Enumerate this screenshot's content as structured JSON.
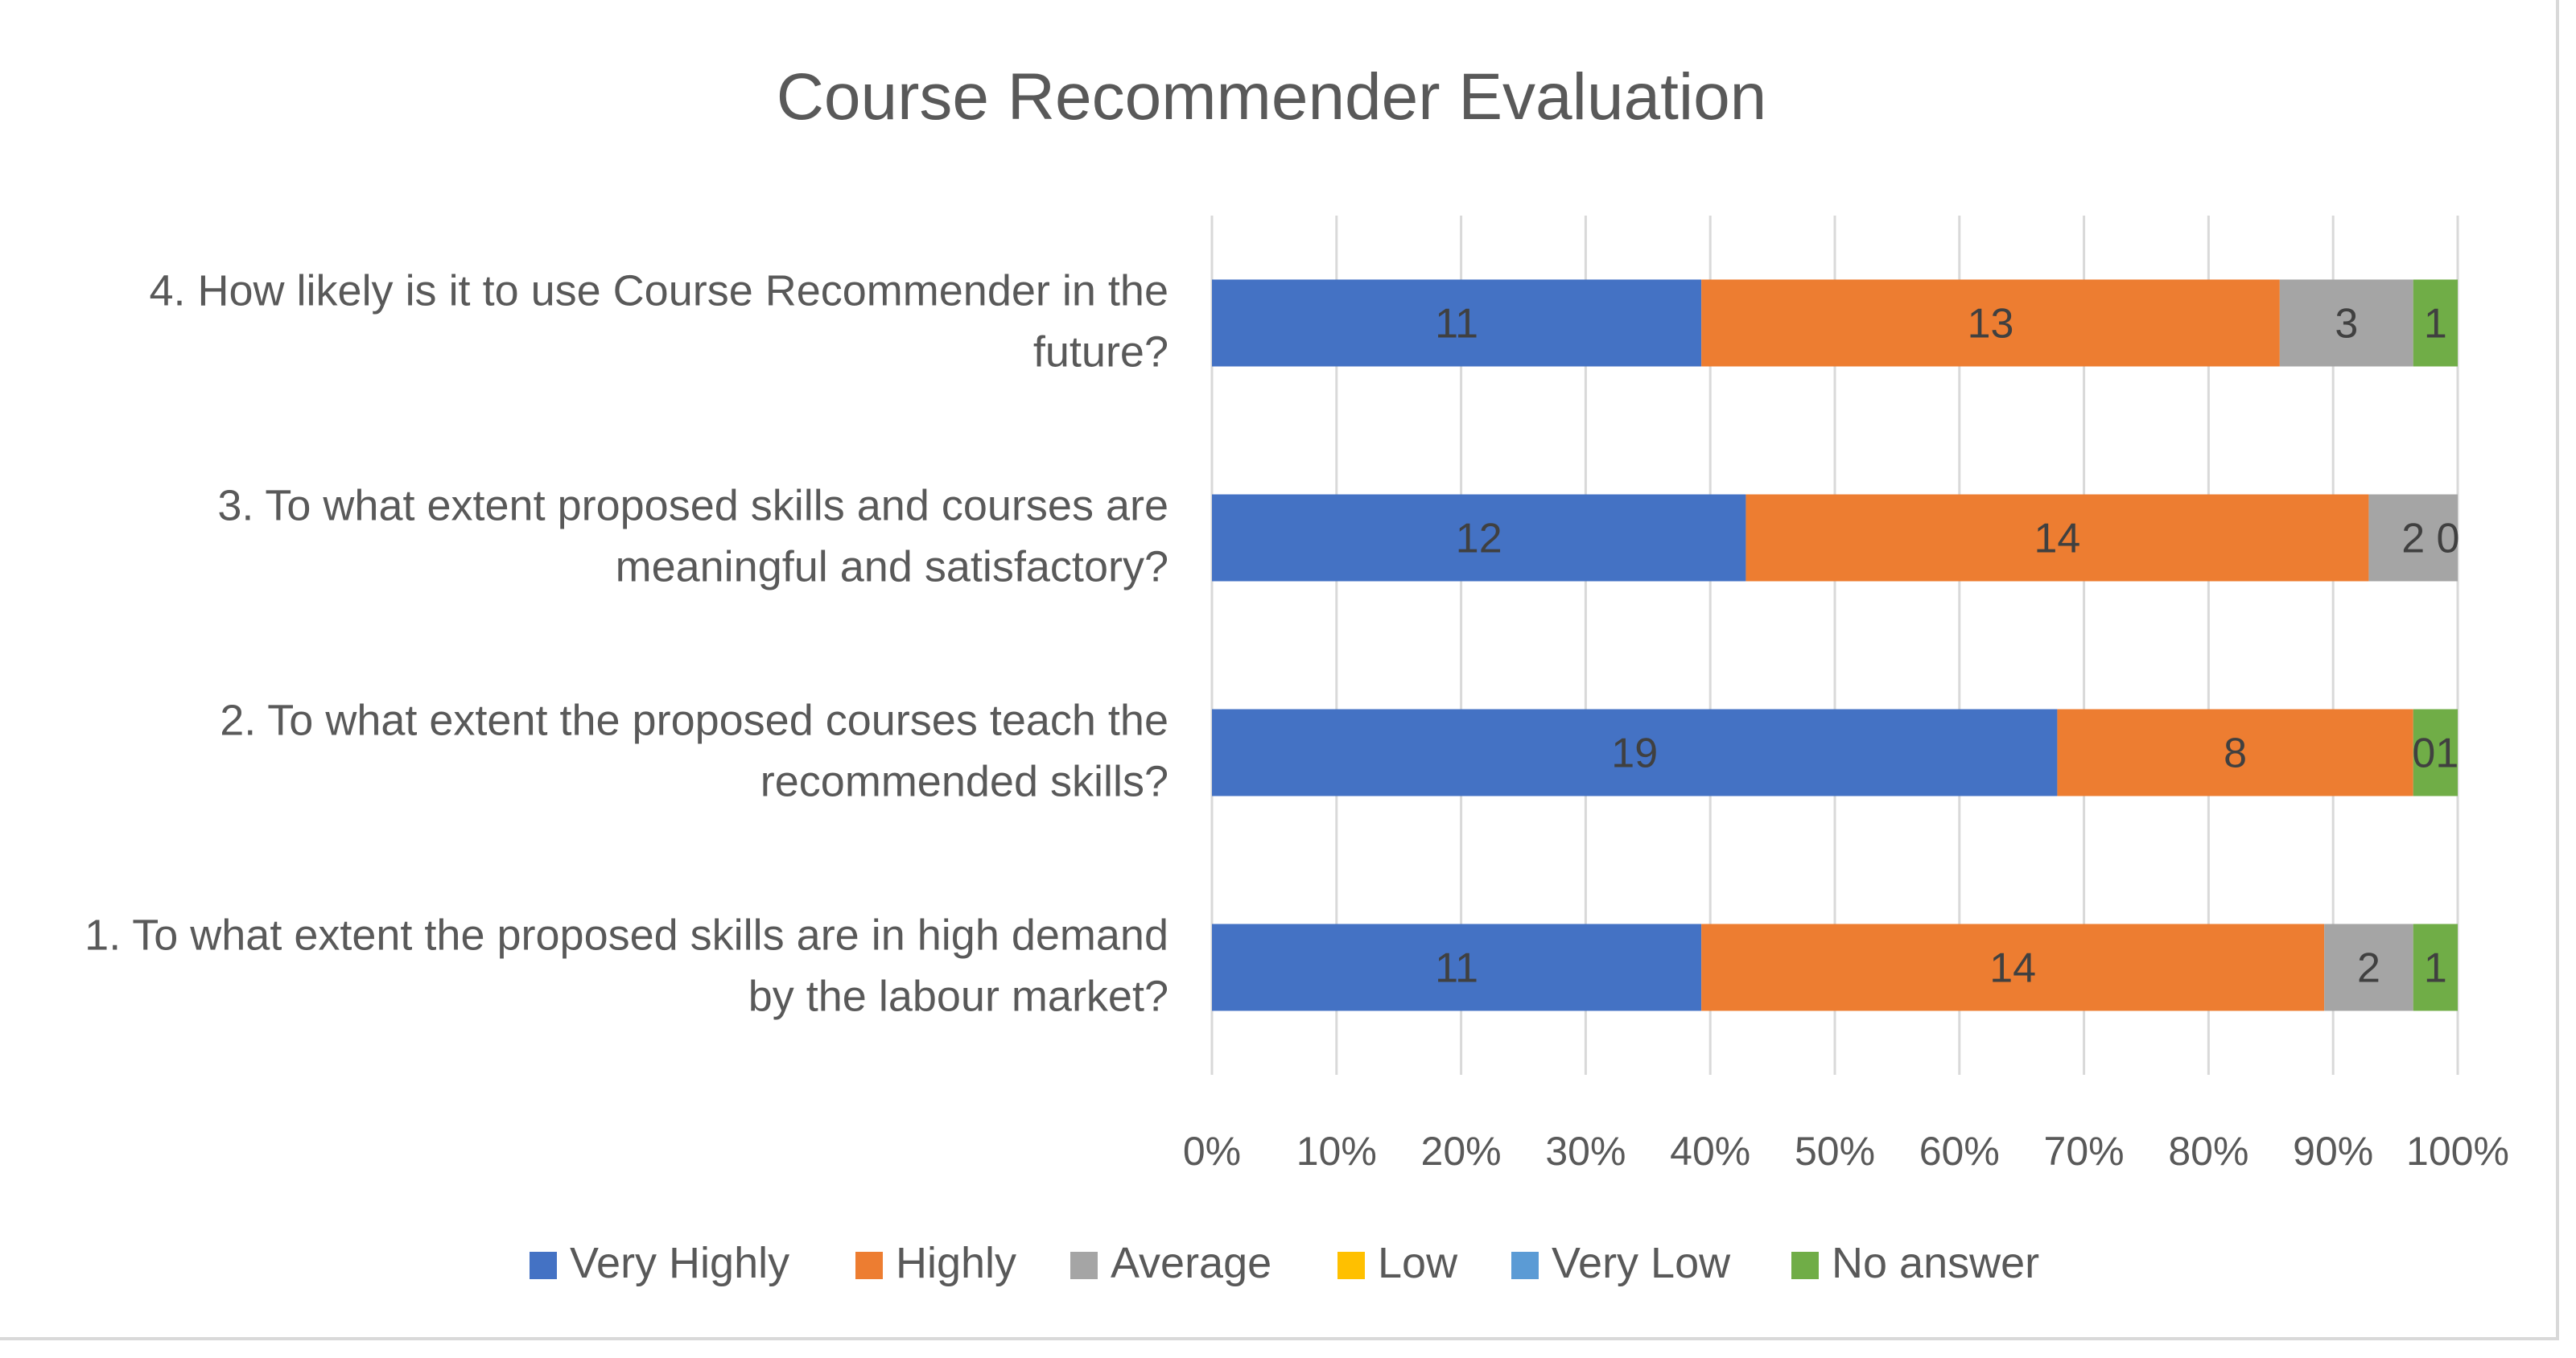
{
  "chart_data": {
    "type": "bar",
    "orientation": "horizontal",
    "stacking": "percent",
    "title": "Course Recommender Evaluation",
    "categories": [
      [
        "1. To what extent the proposed skills are in high demand",
        "by the labour market?"
      ],
      [
        "2. To what extent the proposed courses teach the",
        "recommended skills?"
      ],
      [
        "3.  To what extent proposed skills and courses are",
        "meaningful and satisfactory?"
      ],
      [
        "4. How likely is it to use Course Recommender in the",
        "future?"
      ]
    ],
    "series": [
      {
        "name": "Very Highly",
        "color": "#4472c4",
        "values": [
          11,
          19,
          12,
          11
        ]
      },
      {
        "name": "Highly",
        "color": "#ed7d31",
        "values": [
          14,
          8,
          14,
          13
        ]
      },
      {
        "name": "Average",
        "color": "#a5a5a5",
        "values": [
          2,
          0,
          2,
          3
        ]
      },
      {
        "name": "Low",
        "color": "#ffc000",
        "values": [
          0,
          0,
          0,
          0
        ]
      },
      {
        "name": "Very Low",
        "color": "#5b9bd5",
        "values": [
          0,
          0,
          0,
          0
        ]
      },
      {
        "name": "No answer",
        "color": "#70ad47",
        "values": [
          1,
          1,
          0,
          1
        ]
      }
    ],
    "data_labels": [
      [
        "11",
        "14",
        "2",
        "",
        "",
        "1"
      ],
      [
        "19",
        "8",
        "",
        "",
        "",
        "01"
      ],
      [
        "12",
        "14",
        "2",
        "",
        "",
        "0"
      ],
      [
        "11",
        "13",
        "3",
        "",
        "",
        "1"
      ]
    ],
    "xlim": [
      0,
      100
    ],
    "x_ticks": [
      "0%",
      "10%",
      "20%",
      "30%",
      "40%",
      "50%",
      "60%",
      "70%",
      "80%",
      "90%",
      "100%"
    ],
    "grid": "vertical",
    "legend": "bottom"
  }
}
